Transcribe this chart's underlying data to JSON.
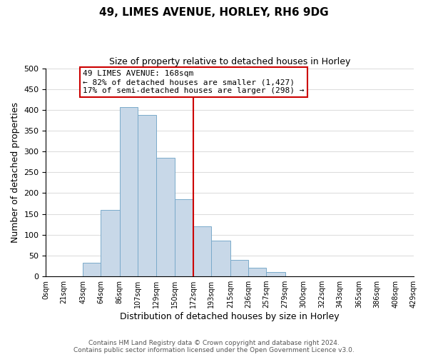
{
  "title": "49, LIMES AVENUE, HORLEY, RH6 9DG",
  "subtitle": "Size of property relative to detached houses in Horley",
  "xlabel": "Distribution of detached houses by size in Horley",
  "ylabel": "Number of detached properties",
  "bar_edges": [
    0,
    21,
    43,
    64,
    86,
    107,
    129,
    150,
    172,
    193,
    215,
    236,
    257,
    279,
    300,
    322,
    343,
    365,
    386,
    408,
    429
  ],
  "bar_heights": [
    0,
    0,
    33,
    160,
    407,
    388,
    284,
    185,
    120,
    86,
    40,
    21,
    11,
    0,
    0,
    0,
    0,
    0,
    0,
    0
  ],
  "bar_color": "#c8d8e8",
  "bar_edgecolor": "#7aaaca",
  "vline_x": 172,
  "vline_color": "#cc0000",
  "annotation_title": "49 LIMES AVENUE: 168sqm",
  "annotation_line1": "← 82% of detached houses are smaller (1,427)",
  "annotation_line2": "17% of semi-detached houses are larger (298) →",
  "annotation_box_color": "#ffffff",
  "annotation_box_edgecolor": "#cc0000",
  "tick_labels": [
    "0sqm",
    "21sqm",
    "43sqm",
    "64sqm",
    "86sqm",
    "107sqm",
    "129sqm",
    "150sqm",
    "172sqm",
    "193sqm",
    "215sqm",
    "236sqm",
    "257sqm",
    "279sqm",
    "300sqm",
    "322sqm",
    "343sqm",
    "365sqm",
    "386sqm",
    "408sqm",
    "429sqm"
  ],
  "ylim": [
    0,
    500
  ],
  "yticks": [
    0,
    50,
    100,
    150,
    200,
    250,
    300,
    350,
    400,
    450,
    500
  ],
  "footer_line1": "Contains HM Land Registry data © Crown copyright and database right 2024.",
  "footer_line2": "Contains public sector information licensed under the Open Government Licence v3.0.",
  "background_color": "#ffffff",
  "grid_color": "#dddddd"
}
